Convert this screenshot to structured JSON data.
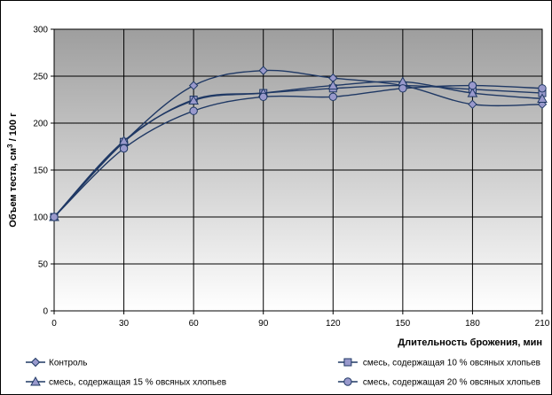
{
  "chart_data": {
    "type": "line",
    "xlabel": "Длительность брожения, мин",
    "ylabel": {
      "before_sup": "Объем теста, см",
      "sup": "3",
      "after_sup": " / 100 г"
    },
    "x": [
      0,
      30,
      60,
      90,
      120,
      150,
      180,
      210
    ],
    "xlim": [
      0,
      210
    ],
    "ylim": [
      0,
      300
    ],
    "xticks": [
      0,
      30,
      60,
      90,
      120,
      150,
      180,
      210
    ],
    "yticks": [
      0,
      50,
      100,
      150,
      200,
      250,
      300
    ],
    "grid": true,
    "legend_position": "bottom",
    "series": [
      {
        "name": "Контроль",
        "marker": "diamond",
        "values": [
          100,
          180,
          240,
          256,
          248,
          240,
          220,
          220
        ]
      },
      {
        "name": "смесь, содержащая 10 % овсяных хлопьев",
        "marker": "square",
        "values": [
          100,
          180,
          225,
          232,
          237,
          240,
          236,
          232
        ]
      },
      {
        "name": "смесь, содержащая 15 % овсяных хлопьев",
        "marker": "triangle",
        "values": [
          100,
          181,
          224,
          232,
          240,
          244,
          232,
          226
        ]
      },
      {
        "name": "смесь, содержащая 20 % овсяных хлопьев",
        "marker": "circle",
        "values": [
          100,
          173,
          213,
          228,
          228,
          237,
          240,
          237
        ]
      }
    ],
    "colors": {
      "line": "#1f3864",
      "marker_fill": "#9999cc",
      "marker_stroke": "#1f3864",
      "plot_top": "#9e9e9e",
      "plot_bottom": "#ffffff",
      "grid": "#000000"
    }
  }
}
